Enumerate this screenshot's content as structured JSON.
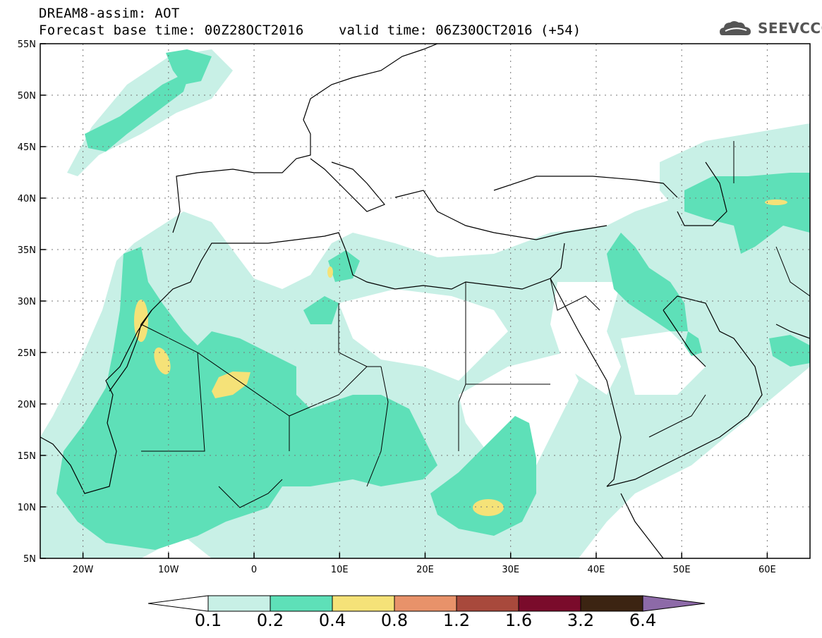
{
  "header": {
    "title": "DREAM8-assim: AOT",
    "base_time": "Forecast base time: 00Z28OCT2016",
    "valid_time": "valid time: 06Z30OCT2016 (+54)",
    "logo": "SEEVCCC"
  },
  "map": {
    "lat_labels": [
      "55N",
      "50N",
      "45N",
      "40N",
      "35N",
      "30N",
      "25N",
      "20N",
      "15N",
      "10N",
      "5N"
    ],
    "lon_labels": [
      "20W",
      "10W",
      "0",
      "10E",
      "20E",
      "30E",
      "40E",
      "50E",
      "60E"
    ],
    "lon_range": [
      -25,
      65
    ],
    "lat_range": [
      5,
      55
    ],
    "grid": true
  },
  "colorbar": {
    "labels": [
      "0.1",
      "0.2",
      "0.4",
      "0.8",
      "1.2",
      "1.6",
      "3.2",
      "6.4"
    ],
    "colors": [
      "#ffffff",
      "#c8f0e6",
      "#5ee0b8",
      "#f5e278",
      "#e8926a",
      "#a8493c",
      "#7a0b2b",
      "#3c2412",
      "#8d6aa8"
    ]
  }
}
